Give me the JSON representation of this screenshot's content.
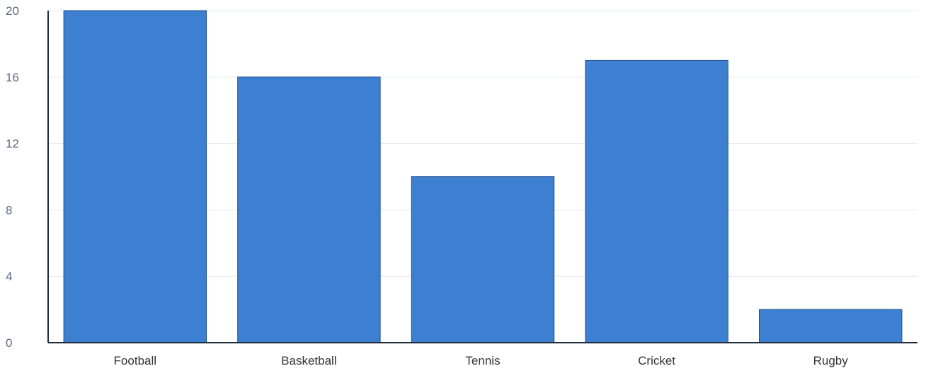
{
  "chart_data": {
    "type": "bar",
    "title": "",
    "xlabel": "",
    "ylabel": "",
    "categories": [
      "Football",
      "Basketball",
      "Tennis",
      "Cricket",
      "Rugby"
    ],
    "values": [
      20,
      16,
      10,
      17,
      2
    ],
    "ylim": [
      0,
      20
    ],
    "yticks": [
      0,
      4,
      8,
      12,
      16,
      20
    ],
    "grid": true,
    "legend": "none",
    "colors": {
      "bar_fill": "#3d7fd0",
      "bar_stroke": "#1f4e8c",
      "grid": "#e3e8f0",
      "axis": "#1f2d3d",
      "y_tick_text": "#5a6a82",
      "x_tick_text": "#333333"
    }
  }
}
